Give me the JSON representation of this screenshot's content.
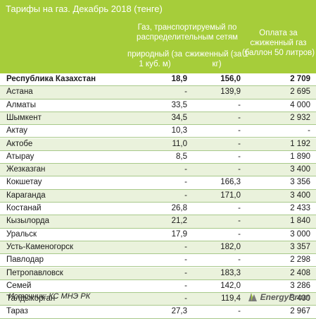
{
  "title": "Тарифы на газ. Декабрь 2018 (тенге)",
  "header": {
    "gas_group": "Газ, транспортируемый по распределительным сетям",
    "natural": "природный (за 1 куб. м)",
    "liquefied": "сжиженный (за 1 кг)",
    "payment": "Оплата за сжиженный газ (баллон 50 литров)"
  },
  "rows": [
    {
      "name": "Республика Казахстан",
      "natural": "18,9",
      "liquefied": "156,0",
      "payment": "2 709"
    },
    {
      "name": "Астана",
      "natural": "-",
      "liquefied": "139,9",
      "payment": "2 695"
    },
    {
      "name": "Алматы",
      "natural": "33,5",
      "liquefied": "-",
      "payment": "4 000"
    },
    {
      "name": "Шымкент",
      "natural": "34,5",
      "liquefied": "-",
      "payment": "2 932"
    },
    {
      "name": "Актау",
      "natural": "10,3",
      "liquefied": "-",
      "payment": "-"
    },
    {
      "name": "Актобе",
      "natural": "11,0",
      "liquefied": "-",
      "payment": "1 192"
    },
    {
      "name": "Атырау",
      "natural": "8,5",
      "liquefied": "-",
      "payment": "1 890"
    },
    {
      "name": "Жезказган",
      "natural": "-",
      "liquefied": "-",
      "payment": "3 400"
    },
    {
      "name": "Кокшетау",
      "natural": "-",
      "liquefied": "166,3",
      "payment": "3 356"
    },
    {
      "name": "Караганда",
      "natural": "-",
      "liquefied": "171,0",
      "payment": "3 400"
    },
    {
      "name": "Костанай",
      "natural": "26,8",
      "liquefied": "-",
      "payment": "2 433"
    },
    {
      "name": "Кызылорда",
      "natural": "21,2",
      "liquefied": "-",
      "payment": "1 840"
    },
    {
      "name": "Уральск",
      "natural": "17,9",
      "liquefied": "-",
      "payment": "3 000"
    },
    {
      "name": "Усть-Каменогорск",
      "natural": "-",
      "liquefied": "182,0",
      "payment": "3 357"
    },
    {
      "name": "Павлодар",
      "natural": "-",
      "liquefied": "-",
      "payment": "2 298"
    },
    {
      "name": "Петропавловск",
      "natural": "-",
      "liquefied": "183,3",
      "payment": "2 408"
    },
    {
      "name": "Семей",
      "natural": "-",
      "liquefied": "142,0",
      "payment": "3 286"
    },
    {
      "name": "Талдыкорган",
      "natural": "-",
      "liquefied": "119,4",
      "payment": "3 400"
    },
    {
      "name": "Тараз",
      "natural": "27,3",
      "liquefied": "-",
      "payment": "2 967"
    }
  ],
  "source": "Источник: КС МНЭ РК",
  "brand": "EnergyProm",
  "colors": {
    "header_green": "#a6cd3a",
    "row_alt": "#eaf2dc",
    "rule": "#a8c98a"
  }
}
